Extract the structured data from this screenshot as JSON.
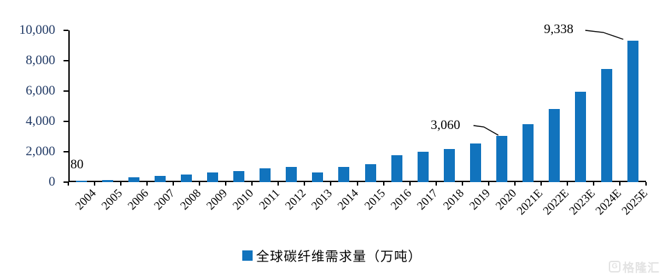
{
  "chart_data": {
    "type": "bar",
    "title": "",
    "xlabel": "",
    "ylabel": "",
    "categories": [
      "2004",
      "2005",
      "2006",
      "2007",
      "2008",
      "2009",
      "2010",
      "2011",
      "2012",
      "2013",
      "2014",
      "2015",
      "2016",
      "2017",
      "2018",
      "2019",
      "2020",
      "2021E",
      "2022E",
      "2023E",
      "2024E",
      "2025E"
    ],
    "values": [
      80,
      150,
      320,
      420,
      490,
      640,
      740,
      890,
      1000,
      650,
      1000,
      1200,
      1780,
      2000,
      2200,
      2530,
      3060,
      3800,
      4830,
      5950,
      7450,
      9338
    ],
    "ylim": [
      0,
      10000
    ],
    "y_tick_labels": [
      "0",
      "2,000",
      "4,000",
      "6,000",
      "8,000",
      "10,000"
    ],
    "grid": false,
    "legend_position": "bottom-center",
    "legend": "全球碳纤维需求量（万吨）",
    "bar_color": "#1173BD",
    "axis_label_color": "#1F3864",
    "annotations": [
      {
        "target": "2004",
        "text": "80"
      },
      {
        "target": "2020",
        "text": "3,060"
      },
      {
        "target": "2025E",
        "text": "9,338"
      }
    ]
  },
  "watermark": {
    "logo_letter": "G",
    "text": "格隆汇"
  }
}
